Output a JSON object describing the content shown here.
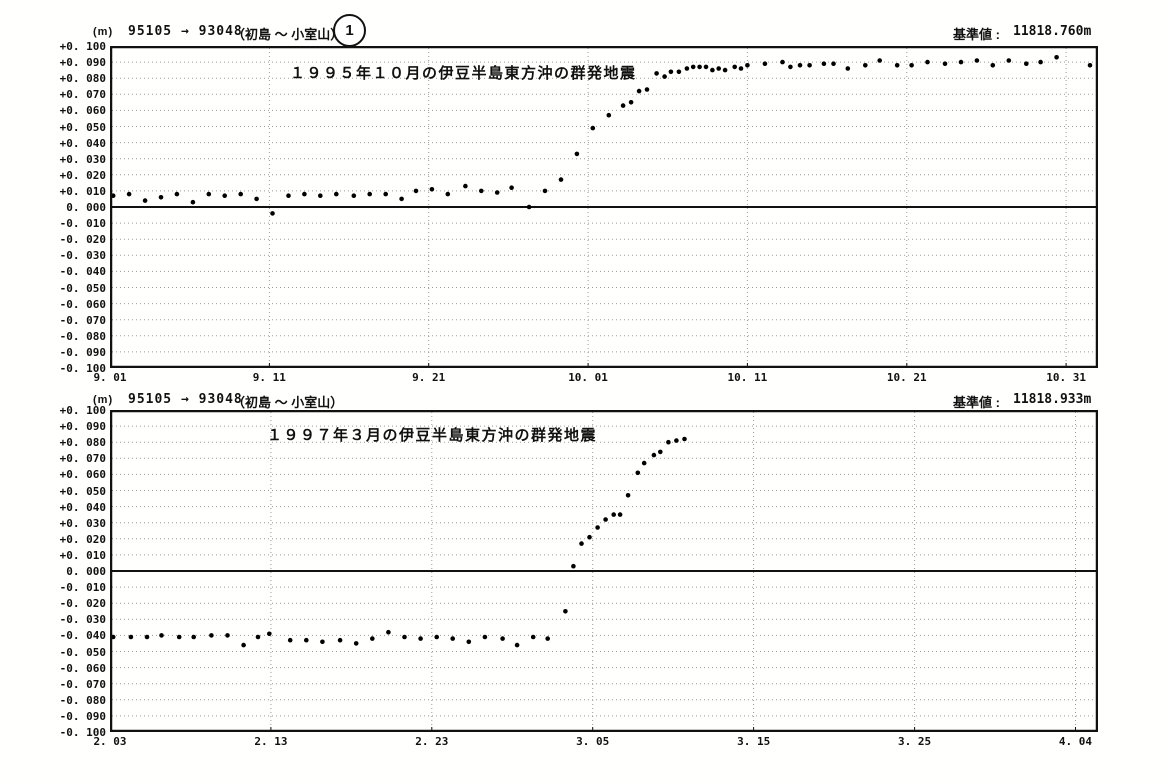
{
  "colors": {
    "ink": "#111111",
    "grid": "#9b9b9b",
    "background": "#ffffff",
    "marker": "#000000"
  },
  "chart_data": [
    {
      "type": "scatter",
      "header": {
        "unit_label": "(m)",
        "pair_label": "95105 → 93048",
        "station_label": "（初島 ～ 小室山）",
        "circled_number": "1",
        "reference_label": "基準値 :",
        "reference_value": "11818.760m"
      },
      "title": "１９９５年１０月の伊豆半島東方沖の群発地震",
      "ylim": [
        -0.1,
        0.1
      ],
      "y_tick_step": 0.01,
      "y_tick_labels": [
        "+0. 100",
        "+0. 090",
        "+0. 080",
        "+0. 070",
        "+0. 060",
        "+0. 050",
        "+0. 040",
        "+0. 030",
        "+0. 020",
        "+0. 010",
        "0. 000",
        "-0. 010",
        "-0. 020",
        "-0. 030",
        "-0. 040",
        "-0. 050",
        "-0. 060",
        "-0. 070",
        "-0. 080",
        "-0. 090",
        "-0. 100"
      ],
      "x_tick_labels": [
        "9. 01",
        "9. 11",
        "9. 21",
        "10. 01",
        "10. 11",
        "10. 21",
        "10. 31"
      ],
      "x_tick_days": [
        0,
        10,
        20,
        30,
        40,
        50,
        60
      ],
      "x_domain_days": [
        0,
        62
      ],
      "grid": "dotted",
      "legend": "none",
      "points_day_value": [
        [
          0.2,
          0.007
        ],
        [
          1.2,
          0.008
        ],
        [
          2.2,
          0.004
        ],
        [
          3.2,
          0.006
        ],
        [
          4.2,
          0.008
        ],
        [
          5.2,
          0.003
        ],
        [
          6.2,
          0.008
        ],
        [
          7.2,
          0.007
        ],
        [
          8.2,
          0.008
        ],
        [
          9.2,
          0.005
        ],
        [
          10.2,
          -0.004
        ],
        [
          11.2,
          0.007
        ],
        [
          12.2,
          0.008
        ],
        [
          13.2,
          0.007
        ],
        [
          14.2,
          0.008
        ],
        [
          15.3,
          0.007
        ],
        [
          16.3,
          0.008
        ],
        [
          17.3,
          0.008
        ],
        [
          18.3,
          0.005
        ],
        [
          19.2,
          0.01
        ],
        [
          20.2,
          0.011
        ],
        [
          21.2,
          0.008
        ],
        [
          22.3,
          0.013
        ],
        [
          23.3,
          0.01
        ],
        [
          24.3,
          0.009
        ],
        [
          25.2,
          0.012
        ],
        [
          26.3,
          0.0
        ],
        [
          27.3,
          0.01
        ],
        [
          28.3,
          0.017
        ],
        [
          29.3,
          0.033
        ],
        [
          30.3,
          0.049
        ],
        [
          31.3,
          0.057
        ],
        [
          32.2,
          0.063
        ],
        [
          32.7,
          0.065
        ],
        [
          33.2,
          0.072
        ],
        [
          33.7,
          0.073
        ],
        [
          34.3,
          0.083
        ],
        [
          34.8,
          0.081
        ],
        [
          35.2,
          0.084
        ],
        [
          35.7,
          0.084
        ],
        [
          36.2,
          0.086
        ],
        [
          36.6,
          0.087
        ],
        [
          37.0,
          0.087
        ],
        [
          37.4,
          0.087
        ],
        [
          37.8,
          0.085
        ],
        [
          38.2,
          0.086
        ],
        [
          38.6,
          0.085
        ],
        [
          39.2,
          0.087
        ],
        [
          39.6,
          0.086
        ],
        [
          40.0,
          0.088
        ],
        [
          41.1,
          0.089
        ],
        [
          42.2,
          0.09
        ],
        [
          42.7,
          0.087
        ],
        [
          43.3,
          0.088
        ],
        [
          43.9,
          0.088
        ],
        [
          44.8,
          0.089
        ],
        [
          45.4,
          0.089
        ],
        [
          46.3,
          0.086
        ],
        [
          47.4,
          0.088
        ],
        [
          48.3,
          0.091
        ],
        [
          49.4,
          0.088
        ],
        [
          50.3,
          0.088
        ],
        [
          51.3,
          0.09
        ],
        [
          52.4,
          0.089
        ],
        [
          53.4,
          0.09
        ],
        [
          54.4,
          0.091
        ],
        [
          55.4,
          0.088
        ],
        [
          56.4,
          0.091
        ],
        [
          57.5,
          0.089
        ],
        [
          58.4,
          0.09
        ],
        [
          59.4,
          0.093
        ],
        [
          61.5,
          0.088
        ]
      ]
    },
    {
      "type": "scatter",
      "header": {
        "unit_label": "(m)",
        "pair_label": "95105 → 93048",
        "station_label": "（初島 ～ 小室山）",
        "reference_label": "基準値 :",
        "reference_value": "11818.933m"
      },
      "title": "１９９７年３月の伊豆半島東方沖の群発地震",
      "ylim": [
        -0.1,
        0.1
      ],
      "y_tick_step": 0.01,
      "y_tick_labels": [
        "+0. 100",
        "+0. 090",
        "+0. 080",
        "+0. 070",
        "+0. 060",
        "+0. 050",
        "+0. 040",
        "+0. 030",
        "+0. 020",
        "+0. 010",
        "0. 000",
        "-0. 010",
        "-0. 020",
        "-0. 030",
        "-0. 040",
        "-0. 050",
        "-0. 060",
        "-0. 070",
        "-0. 080",
        "-0. 090",
        "-0. 100"
      ],
      "x_tick_labels": [
        "2. 03",
        "2. 13",
        "2. 23",
        "3. 05",
        "3. 15",
        "3. 25",
        "4. 04"
      ],
      "x_tick_days": [
        0,
        10,
        20,
        30,
        40,
        50,
        60
      ],
      "x_domain_days": [
        0,
        61.4
      ],
      "grid": "dotted",
      "legend": "none",
      "points_day_value": [
        [
          0.2,
          -0.041
        ],
        [
          1.3,
          -0.041
        ],
        [
          2.3,
          -0.041
        ],
        [
          3.2,
          -0.04
        ],
        [
          4.3,
          -0.041
        ],
        [
          5.2,
          -0.041
        ],
        [
          6.3,
          -0.04
        ],
        [
          7.3,
          -0.04
        ],
        [
          8.3,
          -0.046
        ],
        [
          9.2,
          -0.041
        ],
        [
          9.9,
          -0.039
        ],
        [
          11.2,
          -0.043
        ],
        [
          12.2,
          -0.043
        ],
        [
          13.2,
          -0.044
        ],
        [
          14.3,
          -0.043
        ],
        [
          15.3,
          -0.045
        ],
        [
          16.3,
          -0.042
        ],
        [
          17.3,
          -0.038
        ],
        [
          18.3,
          -0.041
        ],
        [
          19.3,
          -0.042
        ],
        [
          20.3,
          -0.041
        ],
        [
          21.3,
          -0.042
        ],
        [
          22.3,
          -0.044
        ],
        [
          23.3,
          -0.041
        ],
        [
          24.4,
          -0.042
        ],
        [
          25.3,
          -0.046
        ],
        [
          26.3,
          -0.041
        ],
        [
          27.2,
          -0.042
        ],
        [
          28.3,
          -0.025
        ],
        [
          28.8,
          0.003
        ],
        [
          29.3,
          0.017
        ],
        [
          29.8,
          0.021
        ],
        [
          30.3,
          0.027
        ],
        [
          30.8,
          0.032
        ],
        [
          31.3,
          0.035
        ],
        [
          31.7,
          0.035
        ],
        [
          32.2,
          0.047
        ],
        [
          32.8,
          0.061
        ],
        [
          33.2,
          0.067
        ],
        [
          33.8,
          0.072
        ],
        [
          34.2,
          0.074
        ],
        [
          34.7,
          0.08
        ],
        [
          35.2,
          0.081
        ],
        [
          35.7,
          0.082
        ]
      ]
    }
  ]
}
